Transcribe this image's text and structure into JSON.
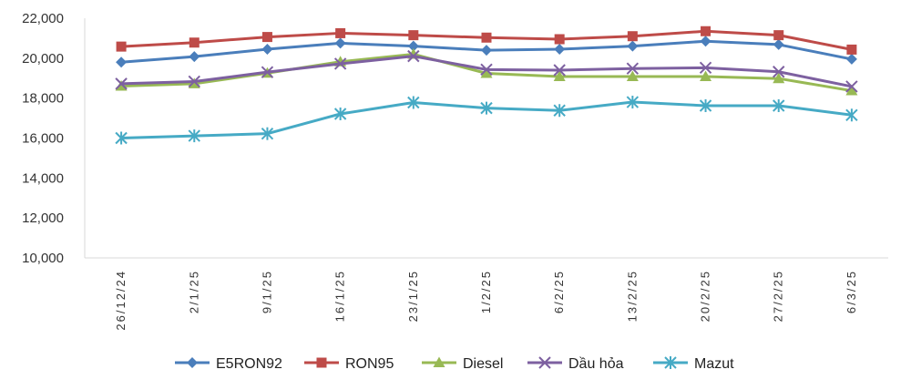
{
  "chart_data": {
    "type": "line",
    "title": "",
    "xlabel": "",
    "ylabel": "",
    "categories": [
      "26/12/24",
      "2/1/25",
      "9/1/25",
      "16/1/25",
      "23/1/25",
      "1/2/25",
      "6/2/25",
      "13/2/25",
      "20/2/25",
      "27/2/25",
      "6/3/25"
    ],
    "ylim": [
      10000,
      22000
    ],
    "yticks": [
      "10,000",
      "12,000",
      "14,000",
      "16,000",
      "18,000",
      "20,000",
      "22,000"
    ],
    "grid": false,
    "legend_position": "bottom",
    "series": [
      {
        "name": "E5RON92",
        "color": "#4A7EBB",
        "marker": "diamond",
        "values": [
          19800,
          20080,
          20450,
          20750,
          20600,
          20400,
          20450,
          20600,
          20850,
          20680,
          19950
        ]
      },
      {
        "name": "RON95",
        "color": "#BE4B48",
        "marker": "square",
        "values": [
          20580,
          20780,
          21060,
          21250,
          21150,
          21030,
          20950,
          21100,
          21350,
          21150,
          20430
        ]
      },
      {
        "name": "Diesel",
        "color": "#98B954",
        "marker": "triangle",
        "values": [
          18600,
          18720,
          19250,
          19820,
          20200,
          19240,
          19080,
          19080,
          19080,
          18980,
          18370
        ]
      },
      {
        "name": "Dầu hỏa",
        "color": "#7D60A0",
        "marker": "x",
        "values": [
          18720,
          18830,
          19300,
          19720,
          20100,
          19430,
          19400,
          19480,
          19520,
          19320,
          18580
        ]
      },
      {
        "name": "Mazut",
        "color": "#46AAC5",
        "marker": "star",
        "values": [
          16000,
          16110,
          16220,
          17210,
          17780,
          17500,
          17380,
          17800,
          17620,
          17620,
          17150
        ]
      }
    ]
  }
}
